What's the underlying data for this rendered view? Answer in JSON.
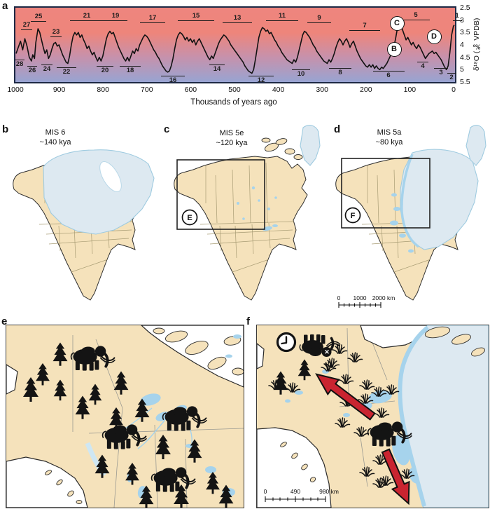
{
  "colors": {
    "gradient_top": "#f3746a",
    "gradient_bottom": "#98a4d2",
    "chart_border": "#1d2945",
    "curve": "#121212",
    "land": "#f5e2bb",
    "ice": "#dde9f1",
    "water": "#a6d3ec",
    "arrow": "#c92430"
  },
  "panel_labels": {
    "a": "a",
    "b": "b",
    "c": "c",
    "d": "d",
    "e": "e",
    "f": "f"
  },
  "chart_data": {
    "type": "line",
    "xlabel": "Thousands of years ago",
    "ylabel": "δ¹⁸O (‰ VPDB)",
    "x_ticks": [
      1000,
      900,
      800,
      700,
      600,
      500,
      400,
      300,
      200,
      100,
      0
    ],
    "y_ticks": [
      "2.5",
      "3",
      "3.5",
      "4",
      "4.5",
      "5",
      "5.5"
    ],
    "xlim": [
      1000,
      0
    ],
    "ylim": [
      5.5,
      2.5
    ],
    "y_axis_reversed": true,
    "grid": false,
    "series": [
      {
        "name": "d18O",
        "points": [
          [
            1000,
            4.35
          ],
          [
            995,
            4.1
          ],
          [
            990,
            3.85
          ],
          [
            985,
            4.2
          ],
          [
            980,
            3.75
          ],
          [
            975,
            4.05
          ],
          [
            970,
            4.5
          ],
          [
            965,
            4.65
          ],
          [
            962,
            4.4
          ],
          [
            958,
            4.55
          ],
          [
            955,
            3.9
          ],
          [
            950,
            3.35
          ],
          [
            946,
            3.5
          ],
          [
            942,
            3.8
          ],
          [
            938,
            4.1
          ],
          [
            934,
            4.35
          ],
          [
            930,
            4.2
          ],
          [
            926,
            4.55
          ],
          [
            922,
            4.4
          ],
          [
            918,
            4.15
          ],
          [
            914,
            3.95
          ],
          [
            910,
            3.9
          ],
          [
            906,
            4.05
          ],
          [
            902,
            4.0
          ],
          [
            898,
            4.2
          ],
          [
            894,
            4.4
          ],
          [
            890,
            4.55
          ],
          [
            886,
            4.7
          ],
          [
            882,
            4.75
          ],
          [
            878,
            4.45
          ],
          [
            874,
            4.0
          ],
          [
            870,
            3.65
          ],
          [
            866,
            3.5
          ],
          [
            862,
            3.6
          ],
          [
            858,
            3.5
          ],
          [
            854,
            3.7
          ],
          [
            850,
            3.6
          ],
          [
            846,
            3.8
          ],
          [
            842,
            3.95
          ],
          [
            838,
            4.15
          ],
          [
            834,
            4.05
          ],
          [
            830,
            4.25
          ],
          [
            826,
            4.4
          ],
          [
            822,
            4.3
          ],
          [
            818,
            4.5
          ],
          [
            814,
            4.65
          ],
          [
            810,
            4.5
          ],
          [
            806,
            4.65
          ],
          [
            802,
            4.45
          ],
          [
            798,
            4.1
          ],
          [
            794,
            3.75
          ],
          [
            790,
            3.55
          ],
          [
            786,
            3.45
          ],
          [
            782,
            3.55
          ],
          [
            778,
            3.5
          ],
          [
            774,
            3.7
          ],
          [
            770,
            3.9
          ],
          [
            766,
            4.1
          ],
          [
            762,
            4.25
          ],
          [
            758,
            4.4
          ],
          [
            754,
            4.55
          ],
          [
            750,
            4.65
          ],
          [
            746,
            4.5
          ],
          [
            742,
            4.65
          ],
          [
            738,
            4.45
          ],
          [
            734,
            4.25
          ],
          [
            730,
            4.35
          ],
          [
            726,
            4.15
          ],
          [
            722,
            4.25
          ],
          [
            718,
            4.0
          ],
          [
            714,
            3.85
          ],
          [
            710,
            3.7
          ],
          [
            706,
            3.6
          ],
          [
            702,
            3.65
          ],
          [
            698,
            3.75
          ],
          [
            694,
            3.9
          ],
          [
            690,
            4.05
          ],
          [
            686,
            4.2
          ],
          [
            682,
            4.3
          ],
          [
            678,
            4.45
          ],
          [
            674,
            4.55
          ],
          [
            670,
            4.7
          ],
          [
            666,
            4.85
          ],
          [
            662,
            4.95
          ],
          [
            658,
            5.05
          ],
          [
            654,
            5.1
          ],
          [
            650,
            5.05
          ],
          [
            646,
            4.85
          ],
          [
            642,
            4.55
          ],
          [
            638,
            4.15
          ],
          [
            634,
            3.8
          ],
          [
            630,
            3.6
          ],
          [
            626,
            3.5
          ],
          [
            622,
            3.55
          ],
          [
            618,
            3.65
          ],
          [
            614,
            3.8
          ],
          [
            610,
            3.7
          ],
          [
            606,
            3.85
          ],
          [
            602,
            3.75
          ],
          [
            598,
            3.9
          ],
          [
            594,
            3.8
          ],
          [
            590,
            4.0
          ],
          [
            586,
            3.85
          ],
          [
            582,
            3.75
          ],
          [
            578,
            3.9
          ],
          [
            574,
            4.05
          ],
          [
            570,
            4.2
          ],
          [
            566,
            4.35
          ],
          [
            562,
            4.5
          ],
          [
            558,
            4.6
          ],
          [
            554,
            4.45
          ],
          [
            550,
            4.55
          ],
          [
            546,
            4.35
          ],
          [
            542,
            4.15
          ],
          [
            538,
            3.95
          ],
          [
            534,
            3.8
          ],
          [
            530,
            3.7
          ],
          [
            526,
            3.6
          ],
          [
            522,
            3.65
          ],
          [
            518,
            3.75
          ],
          [
            514,
            3.85
          ],
          [
            510,
            4.0
          ],
          [
            506,
            4.1
          ],
          [
            502,
            4.2
          ],
          [
            498,
            4.3
          ],
          [
            494,
            4.4
          ],
          [
            490,
            4.5
          ],
          [
            486,
            4.6
          ],
          [
            482,
            4.7
          ],
          [
            478,
            4.85
          ],
          [
            474,
            4.95
          ],
          [
            470,
            5.05
          ],
          [
            466,
            5.1
          ],
          [
            462,
            5.15
          ],
          [
            458,
            5.0
          ],
          [
            454,
            4.6
          ],
          [
            450,
            4.15
          ],
          [
            446,
            3.7
          ],
          [
            442,
            3.45
          ],
          [
            438,
            3.3
          ],
          [
            434,
            3.35
          ],
          [
            430,
            3.45
          ],
          [
            426,
            3.4
          ],
          [
            422,
            3.55
          ],
          [
            418,
            3.5
          ],
          [
            414,
            3.65
          ],
          [
            410,
            3.8
          ],
          [
            406,
            3.9
          ],
          [
            402,
            4.05
          ],
          [
            398,
            4.15
          ],
          [
            394,
            4.3
          ],
          [
            390,
            4.4
          ],
          [
            386,
            4.5
          ],
          [
            382,
            4.6
          ],
          [
            378,
            4.65
          ],
          [
            374,
            4.7
          ],
          [
            370,
            4.75
          ],
          [
            366,
            4.6
          ],
          [
            362,
            4.7
          ],
          [
            358,
            4.5
          ],
          [
            354,
            4.2
          ],
          [
            350,
            3.9
          ],
          [
            346,
            3.6
          ],
          [
            342,
            3.45
          ],
          [
            338,
            3.5
          ],
          [
            334,
            3.6
          ],
          [
            330,
            3.7
          ],
          [
            326,
            3.85
          ],
          [
            322,
            4.0
          ],
          [
            318,
            4.1
          ],
          [
            314,
            4.25
          ],
          [
            310,
            4.35
          ],
          [
            306,
            4.45
          ],
          [
            302,
            4.55
          ],
          [
            298,
            4.65
          ],
          [
            294,
            4.7
          ],
          [
            290,
            4.75
          ],
          [
            286,
            4.6
          ],
          [
            282,
            4.7
          ],
          [
            278,
            4.55
          ],
          [
            274,
            4.35
          ],
          [
            270,
            4.1
          ],
          [
            266,
            3.9
          ],
          [
            262,
            3.75
          ],
          [
            258,
            3.85
          ],
          [
            254,
            4.0
          ],
          [
            250,
            3.85
          ],
          [
            246,
            3.75
          ],
          [
            242,
            3.9
          ],
          [
            238,
            4.1
          ],
          [
            234,
            3.95
          ],
          [
            230,
            3.85
          ],
          [
            226,
            4.05
          ],
          [
            222,
            4.25
          ],
          [
            218,
            4.4
          ],
          [
            214,
            4.55
          ],
          [
            210,
            4.65
          ],
          [
            206,
            4.75
          ],
          [
            202,
            4.85
          ],
          [
            198,
            4.9
          ],
          [
            194,
            4.8
          ],
          [
            190,
            4.9
          ],
          [
            186,
            4.8
          ],
          [
            182,
            4.95
          ],
          [
            178,
            4.85
          ],
          [
            174,
            4.95
          ],
          [
            170,
            5.0
          ],
          [
            166,
            4.9
          ],
          [
            162,
            4.95
          ],
          [
            158,
            4.85
          ],
          [
            154,
            4.75
          ],
          [
            150,
            4.6
          ],
          [
            146,
            4.45
          ],
          [
            142,
            4.3
          ],
          [
            138,
            4.1
          ],
          [
            134,
            3.75
          ],
          [
            130,
            3.35
          ],
          [
            126,
            3.15
          ],
          [
            122,
            3.2
          ],
          [
            118,
            3.4
          ],
          [
            114,
            3.6
          ],
          [
            110,
            3.8
          ],
          [
            106,
            3.7
          ],
          [
            102,
            3.85
          ],
          [
            98,
            4.0
          ],
          [
            94,
            3.9
          ],
          [
            90,
            4.05
          ],
          [
            86,
            4.15
          ],
          [
            82,
            4.0
          ],
          [
            78,
            4.1
          ],
          [
            74,
            4.25
          ],
          [
            70,
            4.4
          ],
          [
            66,
            4.55
          ],
          [
            62,
            4.45
          ],
          [
            58,
            4.35
          ],
          [
            54,
            4.3
          ],
          [
            50,
            4.25
          ],
          [
            46,
            4.35
          ],
          [
            42,
            4.3
          ],
          [
            38,
            4.4
          ],
          [
            34,
            4.5
          ],
          [
            30,
            4.6
          ],
          [
            26,
            4.75
          ],
          [
            22,
            4.9
          ],
          [
            18,
            5.0
          ],
          [
            14,
            4.85
          ],
          [
            10,
            4.3
          ],
          [
            6,
            3.6
          ],
          [
            2,
            3.25
          ],
          [
            0,
            3.2
          ]
        ]
      }
    ],
    "stage_labels_top": [
      {
        "t": "27",
        "x": 16,
        "y": 20,
        "w": 16
      },
      {
        "t": "25",
        "x": 33,
        "y": 8,
        "w": 22
      },
      {
        "t": "23",
        "x": 58,
        "y": 30,
        "w": 16
      },
      {
        "t": "21",
        "x": 102,
        "y": 7,
        "w": 48
      },
      {
        "t": "19",
        "x": 143,
        "y": 7,
        "w": 34
      },
      {
        "t": "17",
        "x": 196,
        "y": 10,
        "w": 36
      },
      {
        "t": "15",
        "x": 258,
        "y": 7,
        "w": 52
      },
      {
        "t": "13",
        "x": 317,
        "y": 10,
        "w": 42
      },
      {
        "t": "11",
        "x": 381,
        "y": 7,
        "w": 46
      },
      {
        "t": "9",
        "x": 434,
        "y": 10,
        "w": 34
      },
      {
        "t": "7",
        "x": 499,
        "y": 21,
        "w": 44
      },
      {
        "t": "5",
        "x": 572,
        "y": 6,
        "w": 40
      },
      {
        "t": "1",
        "x": 631,
        "y": 7,
        "w": 13
      }
    ],
    "stage_labels_bottom": [
      {
        "t": "28",
        "x": 6,
        "y": 76,
        "w": 14
      },
      {
        "t": "26",
        "x": 24,
        "y": 85,
        "w": 14
      },
      {
        "t": "24",
        "x": 45,
        "y": 83,
        "w": 16
      },
      {
        "t": "22",
        "x": 73,
        "y": 87,
        "w": 28
      },
      {
        "t": "20",
        "x": 128,
        "y": 85,
        "w": 24
      },
      {
        "t": "18",
        "x": 164,
        "y": 85,
        "w": 30
      },
      {
        "t": "16",
        "x": 225,
        "y": 99,
        "w": 34
      },
      {
        "t": "14",
        "x": 288,
        "y": 83,
        "w": 22
      },
      {
        "t": "12",
        "x": 351,
        "y": 99,
        "w": 36
      },
      {
        "t": "10",
        "x": 408,
        "y": 90,
        "w": 26
      },
      {
        "t": "8",
        "x": 464,
        "y": 88,
        "w": 32
      },
      {
        "t": "6",
        "x": 533,
        "y": 92,
        "w": 45
      },
      {
        "t": "4",
        "x": 582,
        "y": 79,
        "w": 16
      },
      {
        "t": "3",
        "x": 608,
        "y": 88,
        "w": 20
      },
      {
        "t": "2",
        "x": 623,
        "y": 95,
        "w": 13
      }
    ],
    "markers": [
      {
        "label": "B",
        "x": 540,
        "y": 58
      },
      {
        "label": "C",
        "x": 544,
        "y": 21
      },
      {
        "label": "D",
        "x": 597,
        "y": 40
      }
    ]
  },
  "maps": {
    "b": {
      "title1": "MIS 6",
      "title2": "~140 kya"
    },
    "c": {
      "title1": "MIS 5e",
      "title2": "~120 kya",
      "inset": "E"
    },
    "d": {
      "title1": "MIS 5a",
      "title2": "~80 kya",
      "inset": "F"
    },
    "scale_bcd": {
      "t0": "0",
      "t1": "1000",
      "t2": "2000 km"
    },
    "scale_f": {
      "t0": "0",
      "t1": "490",
      "t2": "980 km"
    }
  },
  "panel_f": {
    "dead_mark": "✕"
  }
}
